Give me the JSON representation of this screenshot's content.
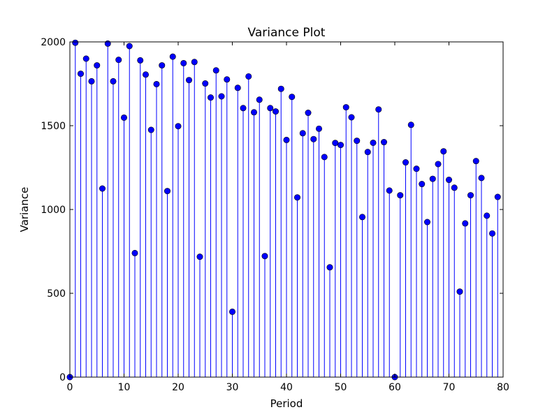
{
  "chart_data": {
    "type": "stem",
    "title": "Variance Plot",
    "xlabel": "Period",
    "ylabel": "Variance",
    "xlim": [
      0,
      80
    ],
    "ylim": [
      0,
      2000
    ],
    "xticks": [
      "0",
      "10",
      "20",
      "30",
      "40",
      "50",
      "60",
      "70",
      "80"
    ],
    "yticks": [
      "0",
      "500",
      "1000",
      "1500",
      "2000"
    ],
    "grid": false,
    "color": "#0000ff",
    "x": [
      0,
      1,
      2,
      3,
      4,
      5,
      6,
      7,
      8,
      9,
      10,
      11,
      12,
      13,
      14,
      15,
      16,
      17,
      18,
      19,
      20,
      21,
      22,
      23,
      24,
      25,
      26,
      27,
      28,
      29,
      30,
      31,
      32,
      33,
      34,
      35,
      36,
      37,
      38,
      39,
      40,
      41,
      42,
      43,
      44,
      45,
      46,
      47,
      48,
      49,
      50,
      51,
      52,
      53,
      54,
      55,
      56,
      57,
      58,
      59,
      60,
      61,
      62,
      63,
      64,
      65,
      66,
      67,
      68,
      69,
      70,
      71,
      72,
      73,
      74,
      75,
      76,
      77,
      78,
      79
    ],
    "y": [
      0,
      1995,
      1810,
      1900,
      1765,
      1860,
      1125,
      1990,
      1765,
      1893,
      1548,
      1975,
      740,
      1890,
      1805,
      1475,
      1748,
      1860,
      1110,
      1912,
      1497,
      1873,
      1772,
      1880,
      718,
      1752,
      1668,
      1830,
      1675,
      1776,
      390,
      1726,
      1605,
      1794,
      1580,
      1655,
      722,
      1605,
      1585,
      1720,
      1415,
      1672,
      1072,
      1455,
      1577,
      1420,
      1482,
      1313,
      655,
      1397,
      1385,
      1610,
      1550,
      1410,
      955,
      1343,
      1398,
      1597,
      1402,
      1113,
      0,
      1085,
      1281,
      1505,
      1243,
      1152,
      925,
      1183,
      1271,
      1347,
      1177,
      1130,
      510,
      917,
      1085,
      1289,
      1188,
      963,
      857,
      1075
    ]
  }
}
